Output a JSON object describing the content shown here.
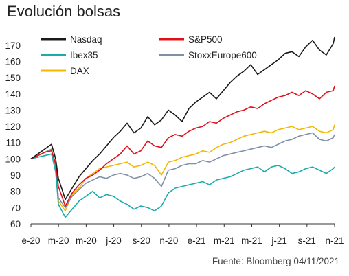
{
  "title": "Evolución bolsas",
  "source_note": "Fuente: Bloomberg 04/11/2021",
  "chart_data": {
    "type": "line",
    "title": "Evolución bolsas",
    "xlabel": "",
    "ylabel": "",
    "ylim": [
      60,
      175
    ],
    "yticks": [
      60,
      70,
      80,
      90,
      100,
      110,
      120,
      130,
      140,
      150,
      160,
      170
    ],
    "xticks": [
      "e-20",
      "m-20",
      "m-20",
      "j-20",
      "s-20",
      "n-20",
      "e-21",
      "m-21",
      "m-21",
      "j-21",
      "s-21",
      "n-21"
    ],
    "legend_position": "top",
    "x": [
      0,
      0.5,
      1,
      1.5,
      1.8,
      2,
      2.5,
      3,
      3.5,
      4,
      4.5,
      5,
      5.5,
      6,
      6.5,
      7,
      7.5,
      8,
      8.5,
      9,
      9.5,
      10,
      10.5,
      11,
      11.5,
      12,
      12.5,
      13,
      13.5,
      14,
      14.5,
      15,
      15.5,
      16,
      16.5,
      17,
      17.5,
      18,
      18.5,
      19,
      19.5,
      20,
      20.5,
      21,
      21.5,
      22,
      22.1
    ],
    "series": [
      {
        "name": "Nasdaq",
        "color": "#1a1a1a",
        "values": [
          100,
          103,
          106,
          109,
          100,
          88,
          75,
          82,
          89,
          94,
          99,
          103,
          108,
          113,
          117,
          122,
          116,
          119,
          126,
          121,
          124,
          130,
          127,
          123,
          131,
          135,
          138,
          141,
          137,
          142,
          147,
          151,
          154,
          158,
          152,
          155,
          158,
          161,
          165,
          166,
          163,
          169,
          173,
          167,
          164,
          171,
          175
        ]
      },
      {
        "name": "S&P500",
        "color": "#e0101a",
        "values": [
          100,
          102,
          104,
          105,
          97,
          83,
          71,
          79,
          84,
          88,
          90,
          93,
          97,
          100,
          103,
          108,
          103,
          105,
          111,
          108,
          107,
          113,
          115,
          114,
          117,
          119,
          120,
          123,
          122,
          125,
          127,
          129,
          130,
          132,
          131,
          134,
          136,
          138,
          139,
          141,
          139,
          142,
          140,
          137,
          141,
          142,
          145
        ]
      },
      {
        "name": "Ibex35",
        "color": "#1aabab",
        "values": [
          100,
          101,
          102,
          103,
          92,
          72,
          64,
          69,
          74,
          77,
          80,
          76,
          78,
          77,
          74,
          72,
          69,
          71,
          70,
          68,
          71,
          79,
          82,
          83,
          84,
          85,
          86,
          84,
          87,
          88,
          89,
          91,
          93,
          94,
          95,
          92,
          95,
          96,
          94,
          91,
          92,
          94,
          95,
          93,
          91,
          94,
          95
        ]
      },
      {
        "name": "StoxxEurope600",
        "color": "#7f8fa6",
        "values": [
          100,
          102,
          104,
          106,
          95,
          76,
          70,
          77,
          81,
          85,
          87,
          89,
          88,
          90,
          91,
          90,
          88,
          89,
          91,
          88,
          83,
          93,
          94,
          96,
          97,
          97,
          99,
          98,
          100,
          102,
          103,
          104,
          105,
          106,
          107,
          108,
          107,
          109,
          111,
          112,
          114,
          115,
          116,
          112,
          111,
          113,
          115
        ]
      },
      {
        "name": "DAX",
        "color": "#f5b800",
        "values": [
          100,
          102,
          104,
          106,
          95,
          74,
          68,
          78,
          82,
          88,
          91,
          94,
          95,
          96,
          97,
          98,
          95,
          96,
          98,
          96,
          90,
          98,
          99,
          101,
          102,
          103,
          105,
          104,
          107,
          109,
          110,
          112,
          114,
          115,
          116,
          117,
          116,
          118,
          119,
          120,
          118,
          119,
          120,
          117,
          116,
          118,
          121
        ]
      }
    ]
  }
}
